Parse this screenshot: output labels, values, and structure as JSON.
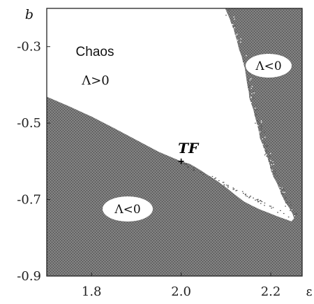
{
  "chart_data": {
    "type": "heatmap",
    "title": "",
    "xlabel": "ε",
    "ylabel": "b",
    "xlim": [
      1.7,
      2.27
    ],
    "ylim": [
      -0.9,
      -0.2
    ],
    "x_ticks": [
      1.8,
      2.0,
      2.2
    ],
    "x_tick_labels": [
      "1.8",
      "2.0",
      "2.2"
    ],
    "y_ticks": [
      -0.3,
      -0.5,
      -0.7,
      -0.9
    ],
    "y_tick_labels": [
      "-0.3",
      "-0.5",
      "-0.7",
      "-0.9"
    ],
    "regions": [
      {
        "label_lines": [
          "Chaos",
          "Λ>0"
        ],
        "fill": "#ffffff",
        "boundary": [
          [
            1.7,
            -0.2
          ],
          [
            2.098,
            -0.2
          ],
          [
            2.103,
            -0.213
          ],
          [
            2.108,
            -0.226
          ],
          [
            2.112,
            -0.24
          ],
          [
            2.117,
            -0.253
          ],
          [
            2.12,
            -0.268
          ],
          [
            2.124,
            -0.282
          ],
          [
            2.127,
            -0.297
          ],
          [
            2.13,
            -0.31
          ],
          [
            2.135,
            -0.325
          ],
          [
            2.138,
            -0.34
          ],
          [
            2.142,
            -0.356
          ],
          [
            2.144,
            -0.371
          ],
          [
            2.146,
            -0.388
          ],
          [
            2.148,
            -0.403
          ],
          [
            2.151,
            -0.418
          ],
          [
            2.152,
            -0.433
          ],
          [
            2.156,
            -0.448
          ],
          [
            2.161,
            -0.464
          ],
          [
            2.164,
            -0.479
          ],
          [
            2.168,
            -0.497
          ],
          [
            2.171,
            -0.51
          ],
          [
            2.174,
            -0.525
          ],
          [
            2.176,
            -0.54
          ],
          [
            2.181,
            -0.554
          ],
          [
            2.185,
            -0.568
          ],
          [
            2.19,
            -0.582
          ],
          [
            2.195,
            -0.597
          ],
          [
            2.198,
            -0.611
          ],
          [
            2.201,
            -0.626
          ],
          [
            2.206,
            -0.641
          ],
          [
            2.213,
            -0.655
          ],
          [
            2.218,
            -0.669
          ],
          [
            2.223,
            -0.684
          ],
          [
            2.228,
            -0.698
          ],
          [
            2.235,
            -0.711
          ],
          [
            2.242,
            -0.723
          ],
          [
            2.248,
            -0.736
          ],
          [
            2.252,
            -0.749
          ],
          [
            2.246,
            -0.757
          ],
          [
            2.232,
            -0.751
          ],
          [
            2.215,
            -0.744
          ],
          [
            2.196,
            -0.735
          ],
          [
            2.176,
            -0.726
          ],
          [
            2.158,
            -0.716
          ],
          [
            2.14,
            -0.705
          ],
          [
            2.12,
            -0.687
          ],
          [
            2.1,
            -0.668
          ],
          [
            2.08,
            -0.651
          ],
          [
            2.06,
            -0.636
          ],
          [
            2.04,
            -0.621
          ],
          [
            2.02,
            -0.607
          ],
          [
            2.0,
            -0.6
          ],
          [
            1.95,
            -0.575
          ],
          [
            1.9,
            -0.544
          ],
          [
            1.85,
            -0.513
          ],
          [
            1.8,
            -0.483
          ],
          [
            1.75,
            -0.456
          ],
          [
            1.7,
            -0.431
          ]
        ]
      },
      {
        "label": "Λ<0",
        "fill": "#6e6e6e",
        "position": "upper-right"
      },
      {
        "label": "Λ<0",
        "fill": "#6e6e6e",
        "position": "lower-left"
      }
    ],
    "points": [
      {
        "label": "TF",
        "x": 2.0,
        "y": -0.6,
        "marker": "+"
      }
    ],
    "grid": false,
    "legend": "none"
  }
}
